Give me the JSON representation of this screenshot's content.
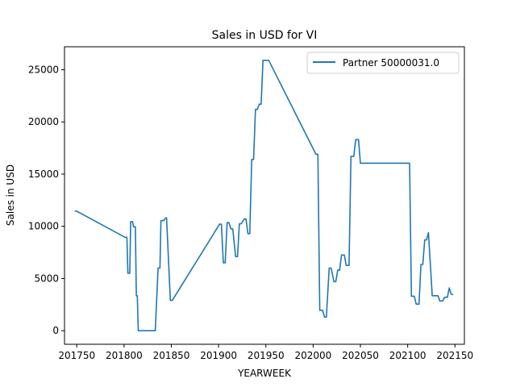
{
  "chart_data": {
    "type": "line",
    "title": "Sales in USD for VI",
    "xlabel": "YEARWEEK",
    "ylabel": "Sales in USD",
    "xlim": [
      201737,
      202160
    ],
    "ylim": [
      -1300,
      27200
    ],
    "xticks": [
      201750,
      201800,
      201850,
      201900,
      201950,
      202000,
      202050,
      202100,
      202150
    ],
    "yticks": [
      0,
      5000,
      10000,
      15000,
      20000,
      25000
    ],
    "grid": false,
    "legend_position": "top-right",
    "series": [
      {
        "name": "Partner 50000031.0",
        "color": "#1f77b4",
        "x": [
          201748,
          201750,
          201801,
          201803,
          201804,
          201806,
          201807,
          201809,
          201810,
          201812,
          201813,
          201814,
          201815,
          201820,
          201831,
          201833,
          201836,
          201838,
          201839,
          201842,
          201844,
          201845,
          201849,
          201851,
          201901,
          201903,
          201905,
          201907,
          201909,
          201911,
          201913,
          201915,
          201918,
          201920,
          201922,
          201924,
          201927,
          201929,
          201931,
          201933,
          201935,
          201937,
          201939,
          201941,
          201943,
          201945,
          201947,
          201949,
          201951,
          201953,
          202003,
          202005,
          202007,
          202010,
          202012,
          202014,
          202017,
          202019,
          202022,
          202024,
          202026,
          202028,
          202030,
          202033,
          202035,
          202038,
          202040,
          202043,
          202045,
          202048,
          202050,
          202102,
          202104,
          202107,
          202109,
          202112,
          202114,
          202116,
          202118,
          202120,
          202122,
          202126,
          202128,
          202132,
          202134,
          202137,
          202139,
          202142,
          202144,
          202146,
          202148
        ],
        "values": [
          11450,
          11450,
          8950,
          8950,
          5500,
          5500,
          10450,
          10450,
          9950,
          9950,
          3350,
          3350,
          0,
          0,
          0,
          0,
          6000,
          6000,
          10550,
          10550,
          10800,
          10800,
          2900,
          2900,
          10200,
          10200,
          6500,
          6500,
          10350,
          10350,
          9750,
          9750,
          7100,
          7100,
          10250,
          10250,
          10700,
          10700,
          9300,
          9300,
          16400,
          16400,
          21200,
          21200,
          21700,
          21700,
          25900,
          25900,
          25900,
          25900,
          16900,
          16900,
          1950,
          1950,
          1300,
          1300,
          6000,
          6000,
          4700,
          4700,
          5800,
          5800,
          7250,
          7250,
          6250,
          6250,
          16700,
          16700,
          18300,
          18300,
          16050,
          16050,
          3300,
          3300,
          2550,
          2550,
          6350,
          6350,
          8700,
          8700,
          9400,
          3350,
          3350,
          3350,
          2850,
          2850,
          3200,
          3200,
          4100,
          3500,
          3450
        ]
      }
    ]
  }
}
